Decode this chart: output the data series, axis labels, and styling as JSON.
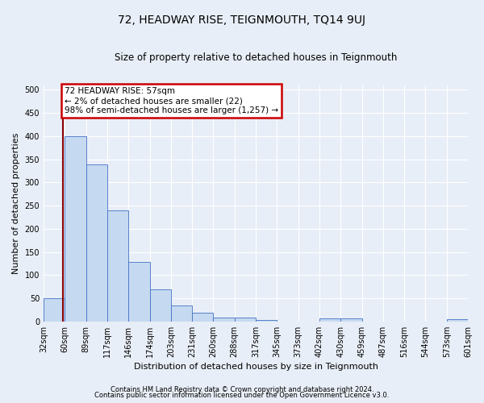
{
  "title": "72, HEADWAY RISE, TEIGNMOUTH, TQ14 9UJ",
  "subtitle": "Size of property relative to detached houses in Teignmouth",
  "xlabel": "Distribution of detached houses by size in Teignmouth",
  "ylabel": "Number of detached properties",
  "bin_labels": [
    "32sqm",
    "60sqm",
    "89sqm",
    "117sqm",
    "146sqm",
    "174sqm",
    "203sqm",
    "231sqm",
    "260sqm",
    "288sqm",
    "317sqm",
    "345sqm",
    "373sqm",
    "402sqm",
    "430sqm",
    "459sqm",
    "487sqm",
    "516sqm",
    "544sqm",
    "573sqm",
    "601sqm"
  ],
  "bar_heights": [
    50,
    400,
    338,
    240,
    128,
    70,
    35,
    18,
    8,
    8,
    3,
    0,
    0,
    7,
    7,
    0,
    0,
    0,
    0,
    5
  ],
  "bar_color": "#c5d9f1",
  "bar_edge_color": "#4472c4",
  "annotation_text": "72 HEADWAY RISE: 57sqm\n← 2% of detached houses are smaller (22)\n98% of semi-detached houses are larger (1,257) →",
  "annotation_box_color": "#ffffff",
  "annotation_box_edge": "#cc0000",
  "marker_line_color": "#8b0000",
  "ylim": [
    0,
    510
  ],
  "yticks": [
    0,
    50,
    100,
    150,
    200,
    250,
    300,
    350,
    400,
    450,
    500
  ],
  "footer1": "Contains HM Land Registry data © Crown copyright and database right 2024.",
  "footer2": "Contains public sector information licensed under the Open Government Licence v3.0.",
  "bg_color": "#e8eef7",
  "grid_color": "#ffffff",
  "title_fontsize": 10,
  "subtitle_fontsize": 8.5,
  "axis_label_fontsize": 8,
  "tick_fontsize": 7,
  "footer_fontsize": 6
}
